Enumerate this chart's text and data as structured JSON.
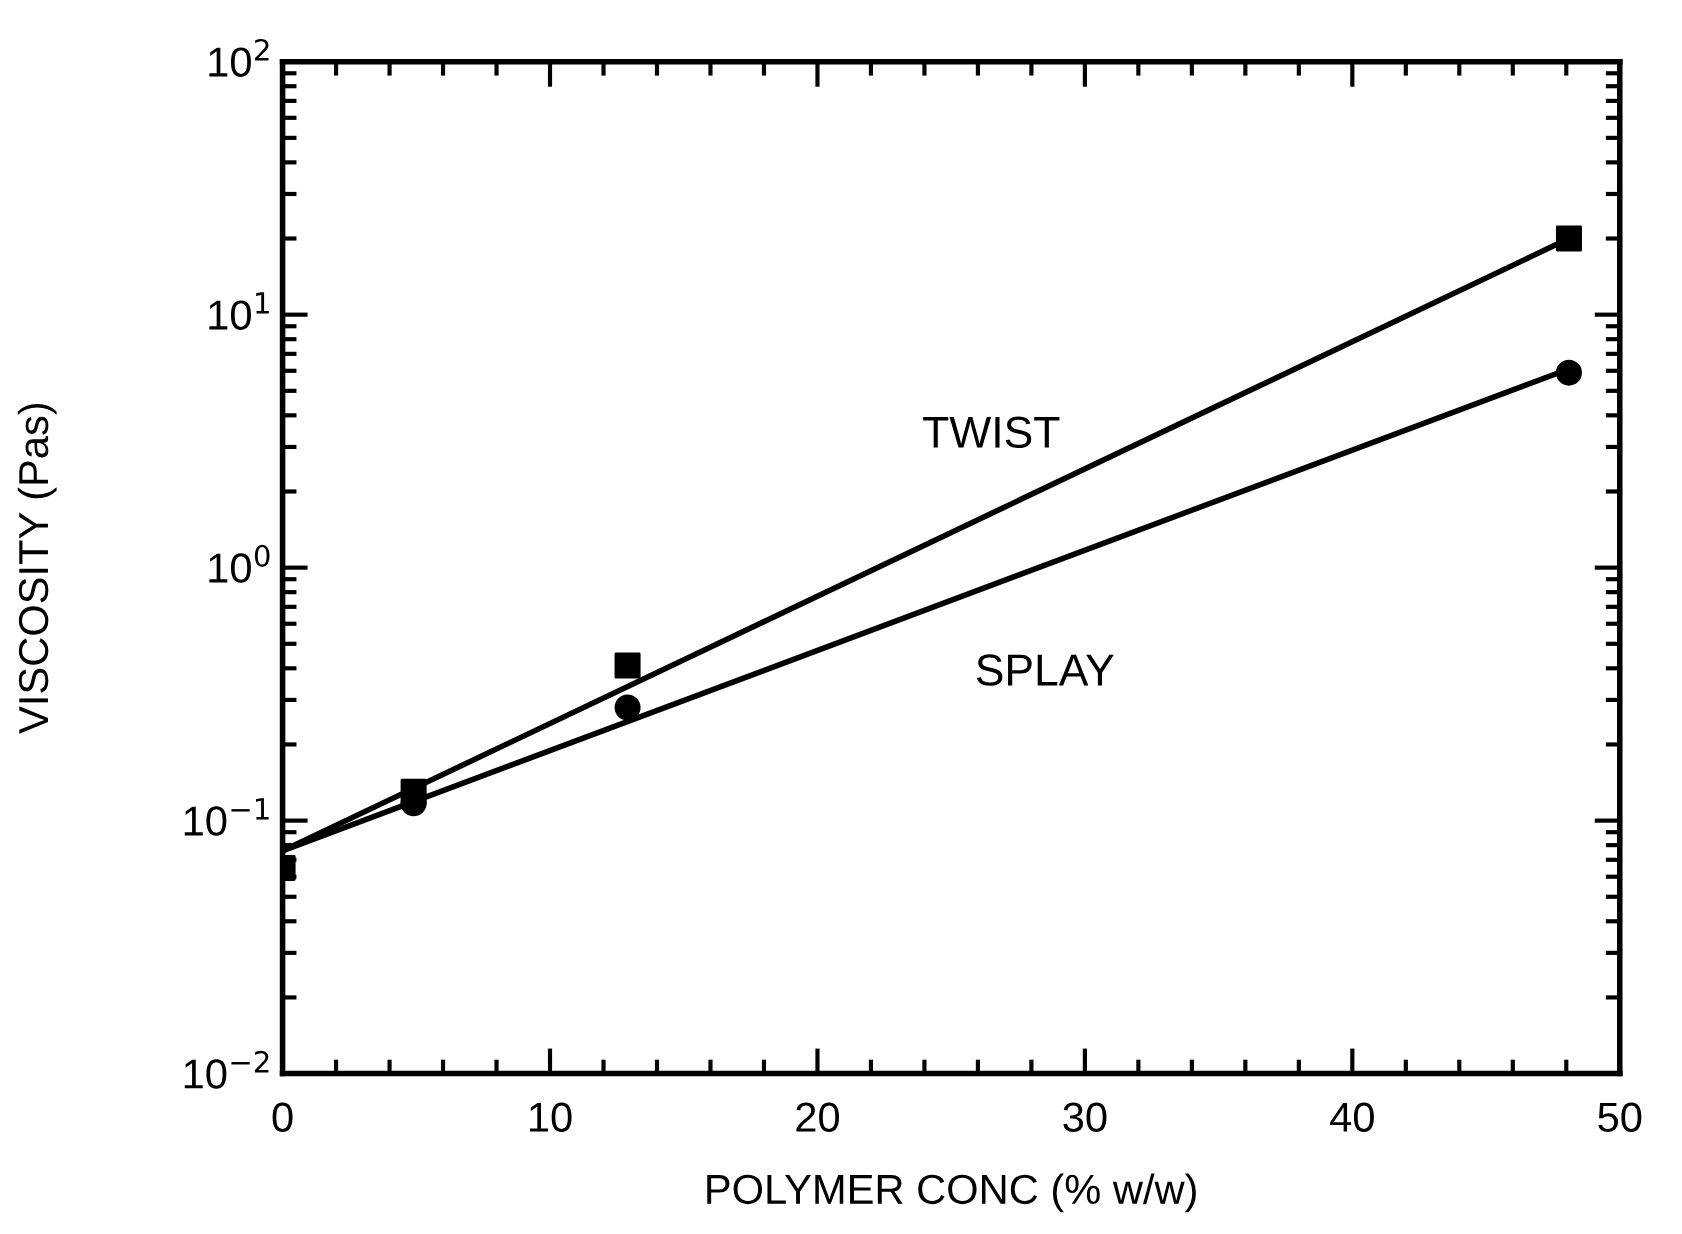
{
  "chart_data": {
    "type": "scatter",
    "xlabel": "POLYMER CONC (% w/w)",
    "ylabel": "VISCOSITY (Pas)",
    "log": "y",
    "grid": false,
    "xlim": [
      0,
      50
    ],
    "xticks": [
      0,
      10,
      20,
      30,
      40,
      50
    ],
    "ylim": [
      0.01,
      100
    ],
    "yticks": [
      {
        "value": 0.01,
        "label": "10$^{−2}$"
      },
      {
        "value": 0.1,
        "label": "10$^{−1}$"
      },
      {
        "value": 1,
        "label": "10$^{0}$"
      },
      {
        "value": 10,
        "label": "10$^{1}$"
      },
      {
        "value": 100,
        "label": "10$^{2}$"
      }
    ],
    "series": [
      {
        "marker": "square",
        "color": "#000000",
        "x": [
          0,
          4.9,
          12.9,
          48.1
        ],
        "values": [
          0.065,
          0.13,
          0.41,
          20
        ]
      },
      {
        "marker": "circle",
        "color": "#000000",
        "x": [
          4.9,
          12.9,
          48.1
        ],
        "values": [
          0.117,
          0.28,
          5.9
        ]
      },
      {
        "type": "line",
        "line_style": "solid",
        "color": "#000000",
        "x": [
          0,
          48.1
        ],
        "values": [
          0.076,
          20
        ]
      },
      {
        "type": "line",
        "line_style": "solid",
        "color": "#000000",
        "x": [
          0,
          48.1
        ],
        "values": [
          0.076,
          6.1
        ]
      }
    ],
    "annotations": [
      "TWIST",
      "SPLAY"
    ]
  }
}
